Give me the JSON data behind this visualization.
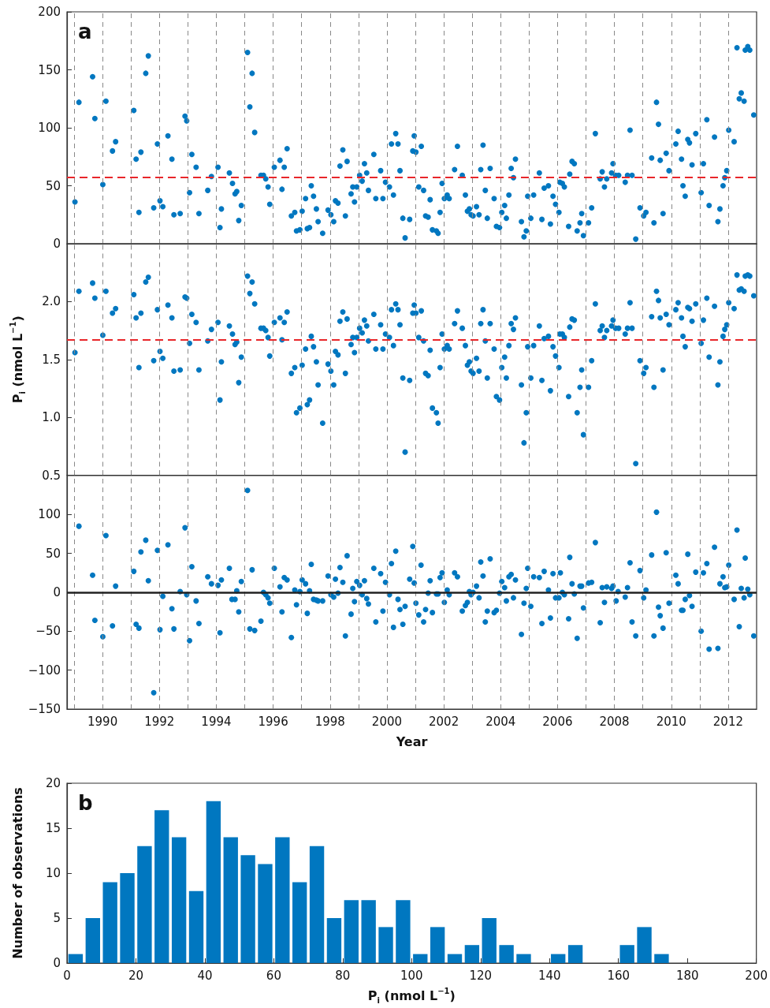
{
  "chart_data": [
    {
      "type": "scatter",
      "color": "#0077c0",
      "marker": "circle",
      "grid": "x",
      "tick_labels": "y",
      "annotations": [
        "a"
      ],
      "xlim": [
        1988.75,
        2013
      ],
      "xticks": [
        {
          "value": 1989,
          "label": null
        },
        1990,
        {
          "value": 1991,
          "label": null
        },
        1992,
        {
          "value": 1993,
          "label": null
        },
        1994,
        {
          "value": 1995,
          "label": null
        },
        1996,
        {
          "value": 1997,
          "label": null
        },
        1998,
        {
          "value": 1999,
          "label": null
        },
        2000,
        {
          "value": 2001,
          "label": null
        },
        2002,
        {
          "value": 2003,
          "label": null
        },
        2004,
        {
          "value": 2005,
          "label": null
        },
        2006,
        {
          "value": 2007,
          "label": null
        },
        2008,
        {
          "value": 2009,
          "label": null
        },
        2010,
        {
          "value": 2011,
          "label": null
        },
        2012
      ],
      "ylim": [
        0,
        200
      ],
      "yticks": [
        0,
        50,
        100,
        150,
        200
      ],
      "ref_lines": [
        {
          "axis": "y",
          "value": 57,
          "color": "#e8262a",
          "line_style": "dashed"
        }
      ],
      "x": [
        1989.03,
        1989.17,
        1989.65,
        1989.73,
        1990.01,
        1990.12,
        1990.35,
        1990.46,
        1991.1,
        1991.18,
        1991.28,
        1991.35,
        1991.52,
        1991.61,
        1991.8,
        1991.93,
        1992.02,
        1992.12,
        1992.3,
        1992.44,
        1992.51,
        1992.73,
        1992.9,
        1992.96,
        1993.06,
        1993.14,
        1993.29,
        1993.39,
        1993.7,
        1993.83,
        1994.06,
        1994.13,
        1994.18,
        1994.46,
        1994.57,
        1994.66,
        1994.72,
        1994.79,
        1994.88,
        1995.1,
        1995.18,
        1995.26,
        1995.35,
        1995.57,
        1995.66,
        1995.74,
        1995.82,
        1995.88,
        1996.04,
        1996.24,
        1996.31,
        1996.39,
        1996.49,
        1996.64,
        1996.76,
        1996.82,
        1996.94,
        1997.02,
        1997.14,
        1997.2,
        1997.28,
        1997.34,
        1997.42,
        1997.52,
        1997.58,
        1997.74,
        1997.93,
        1998.03,
        1998.13,
        1998.19,
        1998.28,
        1998.35,
        1998.45,
        1998.54,
        1998.6,
        1998.74,
        1998.8,
        1998.86,
        1998.94,
        1999.04,
        1999.13,
        1999.21,
        1999.29,
        1999.35,
        1999.54,
        1999.61,
        1999.78,
        1999.86,
        1999.95,
        2000.09,
        2000.16,
        2000.23,
        2000.31,
        2000.39,
        2000.46,
        2000.56,
        2000.64,
        2000.8,
        2000.91,
        2000.96,
        2001.02,
        2001.12,
        2001.21,
        2001.29,
        2001.36,
        2001.45,
        2001.52,
        2001.6,
        2001.74,
        2001.8,
        2001.87,
        2001.94,
        2002.02,
        2002.12,
        2002.19,
        2002.38,
        2002.48,
        2002.65,
        2002.76,
        2002.83,
        2002.9,
        2002.96,
        2003.03,
        2003.15,
        2003.24,
        2003.3,
        2003.38,
        2003.46,
        2003.53,
        2003.63,
        2003.77,
        2003.85,
        2003.96,
        2004.04,
        2004.14,
        2004.2,
        2004.29,
        2004.37,
        2004.45,
        2004.52,
        2004.73,
        2004.82,
        2004.9,
        2004.95,
        2005.06,
        2005.16,
        2005.36,
        2005.45,
        2005.53,
        2005.68,
        2005.75,
        2005.84,
        2005.93,
        2006.05,
        2006.08,
        2006.17,
        2006.24,
        2006.39,
        2006.43,
        2006.51,
        2006.59,
        2006.69,
        2006.79,
        2006.85,
        2006.91,
        2007.09,
        2007.2,
        2007.33,
        2007.5,
        2007.57,
        2007.65,
        2007.73,
        2007.9,
        2007.95,
        2008.04,
        2008.15,
        2008.38,
        2008.46,
        2008.55,
        2008.62,
        2008.75,
        2008.9,
        2009.03,
        2009.11,
        2009.31,
        2009.39,
        2009.48,
        2009.55,
        2009.61,
        2009.71,
        2009.82,
        2009.92,
        2010.16,
        2010.24,
        2010.36,
        2010.41,
        2010.49,
        2010.58,
        2010.64,
        2010.73,
        2010.86,
        2011.05,
        2011.13,
        2011.25,
        2011.33,
        2011.52,
        2011.64,
        2011.71,
        2011.82,
        2011.88,
        2011.95,
        2012.02,
        2012.21,
        2012.31,
        2012.39,
        2012.46,
        2012.56,
        2012.6,
        2012.69,
        2012.76,
        2012.9
      ],
      "values": [
        36,
        122,
        144,
        108,
        51,
        123,
        80,
        88,
        115,
        73,
        27,
        79,
        147,
        162,
        31,
        86,
        37,
        32,
        93,
        73,
        25,
        26,
        110,
        106,
        44,
        77,
        66,
        26,
        46,
        58,
        66,
        14,
        30,
        61,
        52,
        43,
        45,
        20,
        33,
        165,
        118,
        147,
        96,
        59,
        59,
        56,
        49,
        34,
        66,
        72,
        47,
        66,
        82,
        24,
        27,
        11,
        12,
        28,
        39,
        13,
        14,
        50,
        41,
        30,
        19,
        9,
        29,
        25,
        19,
        37,
        35,
        67,
        81,
        24,
        71,
        43,
        49,
        36,
        49,
        59,
        54,
        69,
        61,
        46,
        77,
        39,
        63,
        39,
        53,
        49,
        86,
        42,
        95,
        86,
        63,
        22,
        5,
        21,
        80,
        93,
        79,
        49,
        84,
        46,
        24,
        23,
        38,
        12,
        11,
        9,
        27,
        52,
        39,
        42,
        39,
        64,
        84,
        59,
        42,
        28,
        30,
        25,
        24,
        32,
        25,
        64,
        85,
        46,
        22,
        65,
        39,
        15,
        14,
        27,
        33,
        22,
        42,
        65,
        57,
        73,
        19,
        6,
        11,
        41,
        22,
        42,
        61,
        21,
        48,
        50,
        17,
        41,
        34,
        27,
        53,
        52,
        49,
        15,
        60,
        71,
        69,
        11,
        18,
        26,
        7,
        18,
        31,
        95,
        56,
        62,
        49,
        56,
        61,
        69,
        59,
        59,
        53,
        59,
        98,
        59,
        4,
        31,
        24,
        27,
        74,
        18,
        122,
        103,
        72,
        26,
        78,
        63,
        86,
        97,
        73,
        50,
        41,
        90,
        87,
        68,
        95,
        44,
        69,
        107,
        33,
        92,
        19,
        30,
        50,
        57,
        63,
        98,
        88,
        169,
        125,
        130,
        123,
        167,
        170,
        167,
        111
      ]
    },
    {
      "type": "scatter",
      "color": "#0077c0",
      "marker": "circle",
      "grid": "x",
      "tick_labels": "y",
      "ylabel": "P$_{i}$ (nmol L$^{−1}$)",
      "xlim": [
        1988.75,
        2013
      ],
      "xticks": [
        {
          "value": 1989,
          "label": null
        },
        1990,
        {
          "value": 1991,
          "label": null
        },
        1992,
        {
          "value": 1993,
          "label": null
        },
        1994,
        {
          "value": 1995,
          "label": null
        },
        1996,
        {
          "value": 1997,
          "label": null
        },
        1998,
        {
          "value": 1999,
          "label": null
        },
        2000,
        {
          "value": 2001,
          "label": null
        },
        2002,
        {
          "value": 2003,
          "label": null
        },
        2004,
        {
          "value": 2005,
          "label": null
        },
        2006,
        {
          "value": 2007,
          "label": null
        },
        2008,
        {
          "value": 2009,
          "label": null
        },
        2010,
        {
          "value": 2011,
          "label": null
        },
        2012
      ],
      "ylim": [
        0.5,
        2.5
      ],
      "yticks": [
        0.5,
        {
          "value": 1,
          "label": "1.0"
        },
        1.5,
        {
          "value": 2,
          "label": "2.0"
        }
      ],
      "ref_lines": [
        {
          "axis": "y",
          "value": 1.67,
          "color": "#e8262a",
          "line_style": "dashed"
        }
      ],
      "x": [
        1989.03,
        1989.17,
        1989.65,
        1989.73,
        1990.01,
        1990.12,
        1990.35,
        1990.46,
        1991.1,
        1991.18,
        1991.28,
        1991.35,
        1991.52,
        1991.61,
        1991.8,
        1991.93,
        1992.02,
        1992.12,
        1992.3,
        1992.44,
        1992.51,
        1992.73,
        1992.9,
        1992.96,
        1993.06,
        1993.14,
        1993.29,
        1993.39,
        1993.7,
        1993.83,
        1994.06,
        1994.13,
        1994.18,
        1994.46,
        1994.57,
        1994.66,
        1994.72,
        1994.79,
        1994.88,
        1995.1,
        1995.18,
        1995.26,
        1995.35,
        1995.57,
        1995.66,
        1995.74,
        1995.82,
        1995.88,
        1996.04,
        1996.24,
        1996.31,
        1996.39,
        1996.49,
        1996.64,
        1996.76,
        1996.82,
        1996.94,
        1997.02,
        1997.14,
        1997.2,
        1997.28,
        1997.34,
        1997.42,
        1997.52,
        1997.58,
        1997.74,
        1997.93,
        1998.03,
        1998.13,
        1998.19,
        1998.28,
        1998.35,
        1998.45,
        1998.54,
        1998.6,
        1998.74,
        1998.8,
        1998.86,
        1998.94,
        1999.04,
        1999.13,
        1999.21,
        1999.29,
        1999.35,
        1999.54,
        1999.61,
        1999.78,
        1999.86,
        1999.95,
        2000.09,
        2000.16,
        2000.23,
        2000.31,
        2000.39,
        2000.46,
        2000.56,
        2000.64,
        2000.8,
        2000.91,
        2000.96,
        2001.02,
        2001.12,
        2001.21,
        2001.29,
        2001.36,
        2001.45,
        2001.52,
        2001.6,
        2001.74,
        2001.8,
        2001.87,
        2001.94,
        2002.02,
        2002.12,
        2002.19,
        2002.38,
        2002.48,
        2002.65,
        2002.76,
        2002.83,
        2002.9,
        2002.96,
        2003.03,
        2003.15,
        2003.24,
        2003.3,
        2003.38,
        2003.46,
        2003.53,
        2003.63,
        2003.77,
        2003.85,
        2003.96,
        2004.04,
        2004.14,
        2004.2,
        2004.29,
        2004.37,
        2004.45,
        2004.52,
        2004.73,
        2004.82,
        2004.9,
        2004.95,
        2005.06,
        2005.16,
        2005.36,
        2005.45,
        2005.53,
        2005.68,
        2005.75,
        2005.84,
        2005.93,
        2006.05,
        2006.08,
        2006.17,
        2006.24,
        2006.39,
        2006.43,
        2006.51,
        2006.59,
        2006.69,
        2006.79,
        2006.85,
        2006.91,
        2007.09,
        2007.2,
        2007.33,
        2007.5,
        2007.57,
        2007.65,
        2007.73,
        2007.9,
        2007.95,
        2008.04,
        2008.15,
        2008.38,
        2008.46,
        2008.55,
        2008.62,
        2008.75,
        2008.9,
        2009.03,
        2009.11,
        2009.31,
        2009.39,
        2009.48,
        2009.55,
        2009.61,
        2009.71,
        2009.82,
        2009.92,
        2010.16,
        2010.24,
        2010.36,
        2010.41,
        2010.49,
        2010.58,
        2010.64,
        2010.73,
        2010.86,
        2011.05,
        2011.13,
        2011.25,
        2011.33,
        2011.52,
        2011.64,
        2011.71,
        2011.82,
        2011.88,
        2011.95,
        2012.02,
        2012.21,
        2012.31,
        2012.39,
        2012.46,
        2012.56,
        2012.6,
        2012.69,
        2012.76,
        2012.9
      ],
      "values": [
        1.56,
        2.09,
        2.16,
        2.03,
        1.71,
        2.09,
        1.9,
        1.94,
        2.06,
        1.86,
        1.43,
        1.9,
        2.17,
        2.21,
        1.49,
        1.93,
        1.57,
        1.51,
        1.97,
        1.86,
        1.4,
        1.41,
        2.04,
        2.03,
        1.64,
        1.89,
        1.82,
        1.41,
        1.66,
        1.76,
        1.82,
        1.15,
        1.48,
        1.79,
        1.72,
        1.63,
        1.65,
        1.3,
        1.52,
        2.22,
        2.07,
        2.17,
        1.98,
        1.77,
        1.77,
        1.75,
        1.69,
        1.53,
        1.82,
        1.86,
        1.67,
        1.82,
        1.91,
        1.38,
        1.43,
        1.04,
        1.08,
        1.45,
        1.59,
        1.11,
        1.15,
        1.7,
        1.61,
        1.48,
        1.28,
        0.95,
        1.46,
        1.4,
        1.28,
        1.57,
        1.54,
        1.83,
        1.91,
        1.38,
        1.85,
        1.63,
        1.69,
        1.56,
        1.69,
        1.77,
        1.73,
        1.84,
        1.79,
        1.66,
        1.89,
        1.59,
        1.8,
        1.59,
        1.72,
        1.69,
        1.93,
        1.62,
        1.98,
        1.93,
        1.8,
        1.34,
        0.7,
        1.32,
        1.9,
        1.97,
        1.9,
        1.69,
        1.92,
        1.66,
        1.38,
        1.36,
        1.58,
        1.08,
        1.04,
        0.95,
        1.43,
        1.72,
        1.59,
        1.62,
        1.59,
        1.81,
        1.92,
        1.77,
        1.62,
        1.45,
        1.48,
        1.4,
        1.38,
        1.51,
        1.4,
        1.81,
        1.93,
        1.66,
        1.34,
        1.81,
        1.59,
        1.18,
        1.15,
        1.43,
        1.52,
        1.34,
        1.62,
        1.81,
        1.76,
        1.86,
        1.28,
        0.78,
        1.04,
        1.61,
        1.34,
        1.62,
        1.79,
        1.32,
        1.68,
        1.7,
        1.23,
        1.61,
        1.53,
        1.43,
        1.72,
        1.72,
        1.69,
        1.18,
        1.78,
        1.85,
        1.84,
        1.04,
        1.26,
        1.41,
        0.85,
        1.26,
        1.49,
        1.98,
        1.75,
        1.79,
        1.69,
        1.75,
        1.79,
        1.84,
        1.77,
        1.77,
        1.72,
        1.77,
        1.99,
        1.77,
        0.6,
        1.49,
        1.38,
        1.43,
        1.87,
        1.26,
        2.09,
        2.01,
        1.86,
        1.41,
        1.89,
        1.8,
        1.93,
        1.99,
        1.86,
        1.7,
        1.61,
        1.95,
        1.94,
        1.83,
        1.98,
        1.64,
        1.84,
        2.03,
        1.52,
        1.96,
        1.28,
        1.48,
        1.7,
        1.76,
        1.8,
        1.99,
        1.94,
        2.23,
        2.1,
        2.11,
        2.09,
        2.22,
        2.23,
        2.22,
        2.05
      ]
    },
    {
      "type": "scatter",
      "color": "#0077c0",
      "marker": "circle",
      "grid": "x",
      "xlabel": "Year",
      "xlim": [
        1988.75,
        2013
      ],
      "xticks": [
        {
          "value": 1989,
          "label": null
        },
        1990,
        {
          "value": 1991,
          "label": null
        },
        1992,
        {
          "value": 1993,
          "label": null
        },
        1994,
        {
          "value": 1995,
          "label": null
        },
        1996,
        {
          "value": 1997,
          "label": null
        },
        1998,
        {
          "value": 1999,
          "label": null
        },
        2000,
        {
          "value": 2001,
          "label": null
        },
        2002,
        {
          "value": 2003,
          "label": null
        },
        2004,
        {
          "value": 2005,
          "label": null
        },
        2006,
        {
          "value": 2007,
          "label": null
        },
        2008,
        {
          "value": 2009,
          "label": null
        },
        2010,
        {
          "value": 2011,
          "label": null
        },
        2012
      ],
      "ylim": [
        -150,
        150
      ],
      "yticks": [
        {
          "value": -150,
          "label": "−150"
        },
        {
          "value": -100,
          "label": "−100"
        },
        {
          "value": -50,
          "label": "−50"
        },
        0,
        50,
        100
      ],
      "ref_lines": [
        {
          "axis": "y",
          "value": 0,
          "color": "#222222",
          "line_style": "solid"
        }
      ],
      "x": [
        1989.17,
        1989.65,
        1989.73,
        1990.01,
        1990.12,
        1990.35,
        1990.46,
        1991.1,
        1991.18,
        1991.28,
        1991.35,
        1991.52,
        1991.61,
        1991.8,
        1991.93,
        1992.02,
        1992.12,
        1992.3,
        1992.44,
        1992.51,
        1992.73,
        1992.9,
        1992.96,
        1993.06,
        1993.14,
        1993.29,
        1993.39,
        1993.7,
        1993.83,
        1994.06,
        1994.13,
        1994.18,
        1994.46,
        1994.55,
        1994.66,
        1994.72,
        1994.79,
        1994.88,
        1995.1,
        1995.18,
        1995.26,
        1995.35,
        1995.57,
        1995.66,
        1995.74,
        1995.82,
        1995.88,
        1996.04,
        1996.24,
        1996.31,
        1996.39,
        1996.49,
        1996.64,
        1996.76,
        1996.82,
        1996.94,
        1997.02,
        1997.14,
        1997.2,
        1997.28,
        1997.34,
        1997.42,
        1997.52,
        1997.58,
        1997.74,
        1997.93,
        1998.03,
        1998.13,
        1998.19,
        1998.28,
        1998.35,
        1998.45,
        1998.54,
        1998.6,
        1998.74,
        1998.8,
        1998.86,
        1998.94,
        1999.04,
        1999.13,
        1999.21,
        1999.29,
        1999.35,
        1999.54,
        1999.61,
        1999.78,
        1999.86,
        1999.95,
        2000.09,
        2000.16,
        2000.23,
        2000.31,
        2000.39,
        2000.46,
        2000.56,
        2000.64,
        2000.8,
        2000.91,
        2000.96,
        2001.02,
        2001.12,
        2001.2,
        2001.29,
        2001.36,
        2001.45,
        2001.52,
        2001.6,
        2001.74,
        2001.8,
        2001.87,
        2001.94,
        2002.02,
        2002.12,
        2002.19,
        2002.38,
        2002.48,
        2002.65,
        2002.76,
        2002.83,
        2002.9,
        2002.96,
        2003.03,
        2003.15,
        2003.24,
        2003.3,
        2003.38,
        2003.46,
        2003.53,
        2003.63,
        2003.77,
        2003.85,
        2003.96,
        2004.04,
        2004.14,
        2004.2,
        2004.29,
        2004.37,
        2004.45,
        2004.52,
        2004.73,
        2004.82,
        2004.9,
        2004.95,
        2005.06,
        2005.16,
        2005.36,
        2005.45,
        2005.53,
        2005.68,
        2005.75,
        2005.84,
        2005.93,
        2006.05,
        2006.1,
        2006.17,
        2006.24,
        2006.39,
        2006.43,
        2006.51,
        2006.59,
        2006.69,
        2006.79,
        2006.85,
        2006.91,
        2007.09,
        2007.2,
        2007.33,
        2007.5,
        2007.57,
        2007.65,
        2007.73,
        2007.9,
        2007.95,
        2008.06,
        2008.13,
        2008.38,
        2008.46,
        2008.55,
        2008.62,
        2008.75,
        2008.9,
        2009.03,
        2009.11,
        2009.31,
        2009.39,
        2009.48,
        2009.55,
        2009.61,
        2009.71,
        2009.82,
        2009.92,
        2010.16,
        2010.24,
        2010.36,
        2010.41,
        2010.49,
        2010.58,
        2010.64,
        2010.73,
        2010.86,
        2011.05,
        2011.13,
        2011.25,
        2011.33,
        2011.52,
        2011.64,
        2011.71,
        2011.82,
        2011.88,
        2011.95,
        2012.02,
        2012.21,
        2012.31,
        2012.39,
        2012.46,
        2012.56,
        2012.6,
        2012.69,
        2012.76,
        2012.9
      ],
      "values": [
        85,
        22,
        -36,
        -57,
        73,
        -43,
        8,
        27,
        -41,
        -46,
        52,
        67,
        15,
        -129,
        54,
        -48,
        -5,
        61,
        -21,
        -47,
        1,
        83,
        -3,
        -62,
        33,
        -11,
        -40,
        20,
        11,
        9,
        -52,
        16,
        31,
        -9,
        -9,
        2,
        -25,
        14,
        131,
        -47,
        29,
        -49,
        -37,
        0,
        -3,
        -7,
        -14,
        31,
        7,
        -25,
        19,
        16,
        -58,
        3,
        -16,
        1,
        16,
        11,
        -27,
        2,
        36,
        -9,
        -10,
        -11,
        -11,
        21,
        -3,
        -6,
        17,
        -1,
        32,
        13,
        -56,
        47,
        -28,
        5,
        -12,
        14,
        9,
        -3,
        15,
        -8,
        -15,
        31,
        -38,
        24,
        -24,
        13,
        -3,
        37,
        -45,
        53,
        -9,
        -22,
        -41,
        -18,
        17,
        59,
        12,
        -14,
        -29,
        35,
        -38,
        -22,
        -1,
        15,
        -26,
        -2,
        -2,
        19,
        25,
        -13,
        3,
        -3,
        25,
        20,
        -24,
        -17,
        -13,
        1,
        -3,
        0,
        8,
        -7,
        39,
        21,
        -38,
        -24,
        43,
        -26,
        -23,
        -1,
        14,
        6,
        -11,
        20,
        23,
        -7,
        16,
        -54,
        -14,
        5,
        31,
        -18,
        20,
        19,
        -40,
        27,
        3,
        -33,
        24,
        -7,
        -7,
        25,
        0,
        -3,
        -34,
        45,
        11,
        -2,
        -59,
        8,
        8,
        -20,
        12,
        13,
        64,
        -39,
        6,
        -13,
        7,
        5,
        8,
        -11,
        1,
        -6,
        6,
        38,
        -38,
        -56,
        28,
        -7,
        3,
        48,
        -56,
        103,
        -19,
        -30,
        -46,
        51,
        -14,
        22,
        11,
        -23,
        -23,
        -9,
        49,
        -4,
        -18,
        26,
        -50,
        25,
        37,
        -73,
        58,
        -72,
        11,
        20,
        6,
        7,
        35,
        -9,
        80,
        -44,
        5,
        -7,
        44,
        4,
        -3,
        -56
      ]
    },
    {
      "type": "histogram",
      "color": "#0077c0",
      "annotations": [
        "b"
      ],
      "xlabel": "P$_{i}$ (nmol L$^{−1}$)",
      "ylabel": "Number of observations",
      "bins": [
        0,
        5,
        10,
        15,
        20,
        25,
        30,
        35,
        40,
        45,
        50,
        55,
        60,
        65,
        70,
        75,
        80,
        85,
        90,
        95,
        100,
        105,
        110,
        115,
        120,
        125,
        130,
        135,
        140,
        145,
        150,
        155,
        160,
        165,
        170,
        175
      ],
      "values": [
        1,
        5,
        9,
        10,
        13,
        17,
        14,
        8,
        18,
        14,
        12,
        11,
        14,
        9,
        13,
        5,
        7,
        7,
        4,
        7,
        1,
        4,
        1,
        2,
        5,
        2,
        1,
        0,
        1,
        2,
        0,
        0,
        2,
        4,
        1
      ],
      "xlim": [
        0,
        200
      ],
      "xticks": [
        0,
        20,
        40,
        60,
        80,
        100,
        120,
        140,
        160,
        180,
        200
      ],
      "ylim": [
        0,
        20
      ],
      "yticks": [
        0,
        5,
        10,
        15,
        20
      ]
    }
  ]
}
